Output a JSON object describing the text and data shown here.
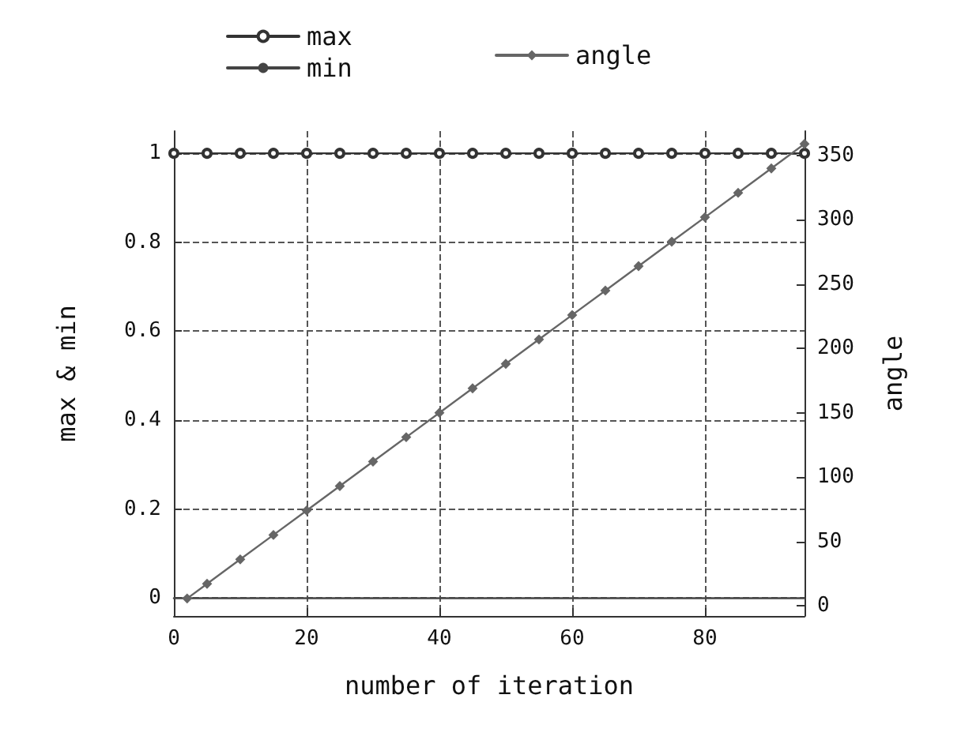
{
  "chart_data": {
    "type": "line",
    "xlabel": "number of iteration",
    "ylabel": "max & min",
    "y2label": "angle",
    "x": [
      0,
      5,
      10,
      15,
      20,
      25,
      30,
      35,
      40,
      45,
      50,
      55,
      60,
      65,
      70,
      75,
      80,
      85,
      90,
      95
    ],
    "series": [
      {
        "name": "max",
        "color": "#333333",
        "marker": "circle",
        "values": [
          1,
          1,
          1,
          1,
          1,
          1,
          1,
          1,
          1,
          1,
          1,
          1,
          1,
          1,
          1,
          1,
          1,
          1,
          1,
          1
        ]
      },
      {
        "name": "min",
        "color": "#444444",
        "marker": "none",
        "values": [
          0,
          0,
          0,
          0,
          0,
          0,
          0,
          0,
          0,
          0,
          0,
          0,
          0,
          0,
          0,
          0,
          0,
          0,
          0,
          0
        ]
      },
      {
        "name": "angle",
        "color": "#666666",
        "marker": "diamond",
        "axis": "y2",
        "x": [
          2,
          5,
          10,
          15,
          20,
          25,
          30,
          35,
          40,
          45,
          50,
          55,
          60,
          65,
          70,
          75,
          80,
          85,
          90,
          95
        ],
        "values": [
          5.6,
          17,
          36,
          55,
          74,
          93,
          112,
          131,
          150,
          169,
          188,
          207,
          226,
          245,
          264,
          283,
          302,
          321,
          340,
          359
        ]
      }
    ],
    "xlim": [
      0,
      95
    ],
    "xticks": [
      0,
      20,
      40,
      60,
      80
    ],
    "ylim": [
      -0.04,
      1.05
    ],
    "yticks": [
      0,
      0.2,
      0.4,
      0.6,
      0.8,
      1
    ],
    "y2lim": [
      -8,
      369
    ],
    "y2ticks": [
      0,
      50,
      100,
      150,
      200,
      250,
      300,
      350
    ],
    "grid": true,
    "legend": "top",
    "line_style": "solid"
  }
}
